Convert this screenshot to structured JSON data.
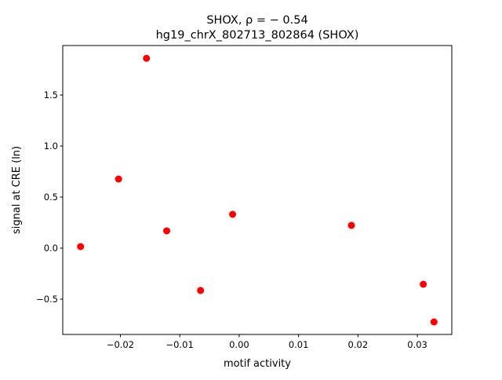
{
  "chart_data": {
    "type": "scatter",
    "title_line1": "SHOX, ρ = − 0.54",
    "title_line2": "hg19_chrX_802713_802864 (SHOX)",
    "xlabel": "motif activity",
    "ylabel": "signal at CRE (ln)",
    "xlim": [
      -0.0297,
      0.0358
    ],
    "ylim": [
      -0.846,
      1.985
    ],
    "xticks": [
      -0.02,
      -0.01,
      0.0,
      0.01,
      0.02,
      0.03
    ],
    "xtick_labels": [
      "−0.02",
      "−0.01",
      "0.00",
      "0.01",
      "0.02",
      "0.03"
    ],
    "yticks": [
      -0.5,
      0.0,
      0.5,
      1.0,
      1.5
    ],
    "ytick_labels": [
      "−0.5",
      "0.0",
      "0.5",
      "1.0",
      "1.5"
    ],
    "grid": false,
    "marker_color": "#ff0000",
    "points": [
      {
        "x": -0.0267,
        "y": 0.015
      },
      {
        "x": -0.0203,
        "y": 0.677
      },
      {
        "x": -0.0156,
        "y": 1.86
      },
      {
        "x": -0.0122,
        "y": 0.169
      },
      {
        "x": -0.0065,
        "y": -0.415
      },
      {
        "x": -0.0011,
        "y": 0.331
      },
      {
        "x": 0.0189,
        "y": 0.223
      },
      {
        "x": 0.031,
        "y": -0.354
      },
      {
        "x": 0.0328,
        "y": -0.723
      }
    ]
  }
}
